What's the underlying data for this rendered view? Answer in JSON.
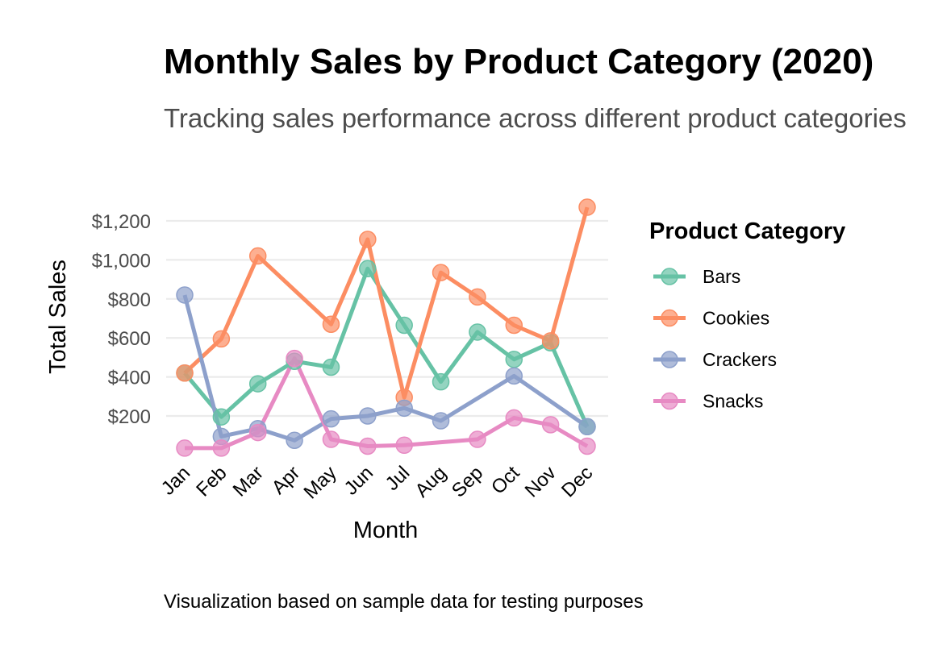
{
  "chart_data": {
    "type": "line",
    "title": "Monthly Sales by Product Category (2020)",
    "subtitle": "Tracking sales performance across different product categories",
    "caption": "Visualization based on sample data for testing purposes",
    "xlabel": "Month",
    "ylabel": "Total Sales",
    "categories": [
      "Jan",
      "Feb",
      "Mar",
      "Apr",
      "May",
      "Jun",
      "Jul",
      "Aug",
      "Sep",
      "Oct",
      "Nov",
      "Dec"
    ],
    "y_ticks": [
      200,
      400,
      600,
      800,
      1000,
      1200
    ],
    "y_tick_labels": [
      "$200",
      "$400",
      "$600",
      "$800",
      "$1,000",
      "$1,200"
    ],
    "ylim": [
      0,
      1300
    ],
    "grid": true,
    "legend": {
      "title": "Product Category",
      "placement": "right"
    },
    "series": [
      {
        "name": "Bars",
        "color": "#66c2a5",
        "values": [
          420,
          195,
          365,
          480,
          450,
          955,
          665,
          375,
          630,
          490,
          575,
          145
        ]
      },
      {
        "name": "Cookies",
        "color": "#fc8d62",
        "values": [
          420,
          595,
          1020,
          null,
          670,
          1105,
          295,
          935,
          810,
          665,
          585,
          1270
        ]
      },
      {
        "name": "Crackers",
        "color": "#8da0cb",
        "values": [
          820,
          95,
          135,
          75,
          185,
          200,
          240,
          175,
          null,
          405,
          null,
          145
        ]
      },
      {
        "name": "Snacks",
        "color": "#e78ac3",
        "values": [
          35,
          35,
          115,
          495,
          80,
          45,
          50,
          null,
          80,
          190,
          155,
          45
        ]
      }
    ]
  }
}
